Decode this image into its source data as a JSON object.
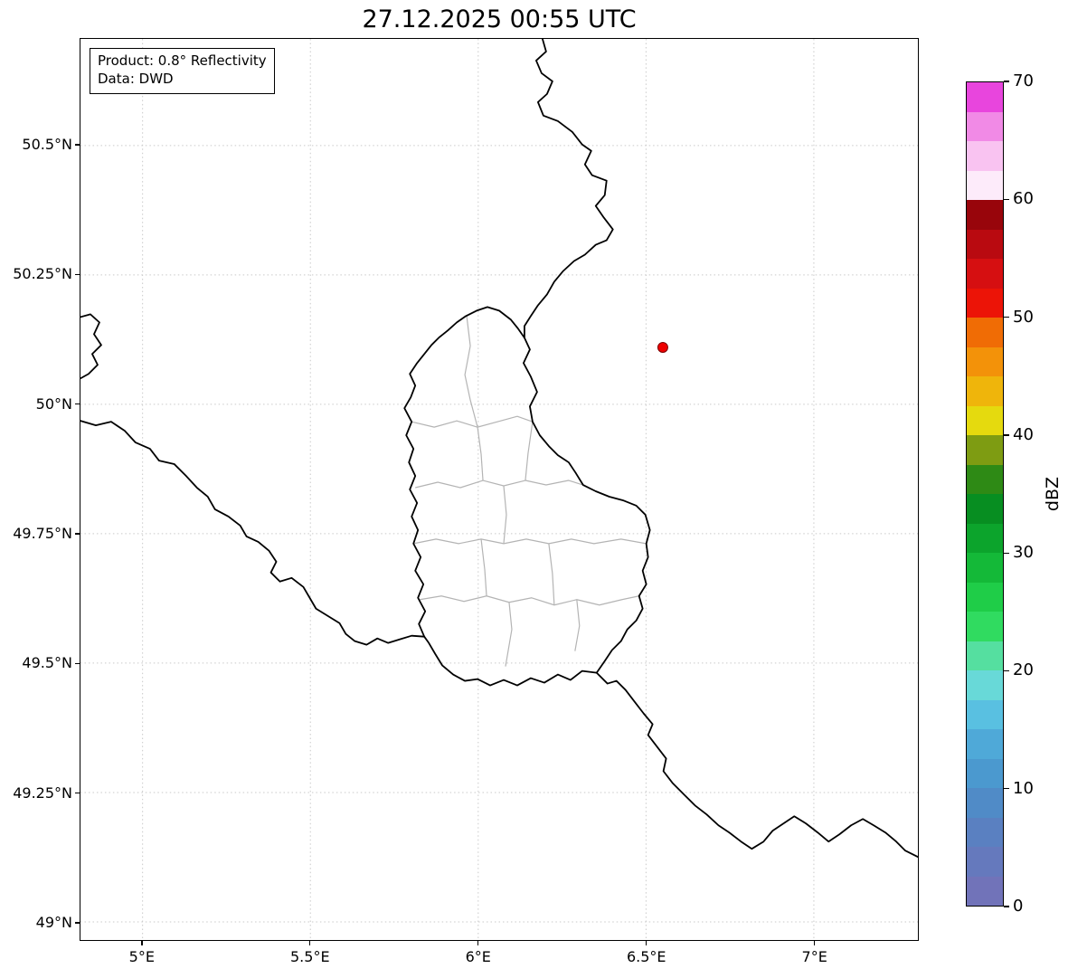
{
  "title": "27.12.2025 00:55 UTC",
  "annotation": {
    "product": "Product: 0.8° Reflectivity",
    "source": "Data: DWD"
  },
  "map": {
    "lon_range": [
      4.815,
      7.31
    ],
    "lat_range": [
      48.965,
      50.706
    ],
    "x_ticks": [
      {
        "value": 5.0,
        "label": "5°E"
      },
      {
        "value": 5.5,
        "label": "5.5°E"
      },
      {
        "value": 6.0,
        "label": "6°E"
      },
      {
        "value": 6.5,
        "label": "6.5°E"
      },
      {
        "value": 7.0,
        "label": "7°E"
      }
    ],
    "y_ticks": [
      {
        "value": 50.5,
        "label": "50.5°N"
      },
      {
        "value": 50.25,
        "label": "50.25°N"
      },
      {
        "value": 50.0,
        "label": "50°N"
      },
      {
        "value": 49.75,
        "label": "49.75°N"
      },
      {
        "value": 49.5,
        "label": "49.5°N"
      },
      {
        "value": 49.25,
        "label": "49.25°N"
      },
      {
        "value": 49.0,
        "label": "49°N"
      }
    ],
    "radar_marker": {
      "lon": 6.55,
      "lat": 50.11,
      "fill": "#ee0000",
      "edge": "#7a0000"
    },
    "border_colors": {
      "national": "#000000",
      "regional": "#b4b4b4"
    },
    "grid_color": "#c9c9c9"
  },
  "colorbar": {
    "label": "dBZ",
    "min": 0,
    "max": 70,
    "tick_values": [
      0,
      10,
      20,
      30,
      40,
      50,
      60,
      70
    ],
    "colors_bottom_to_top": [
      "#7173b9",
      "#6579bd",
      "#5a80c1",
      "#508bc7",
      "#4b99cf",
      "#4fa9d8",
      "#59c0e1",
      "#68d9d8",
      "#55dfa0",
      "#30db60",
      "#1fcd48",
      "#14b938",
      "#0ca42c",
      "#078e21",
      "#2e8a15",
      "#7e9c12",
      "#e5da0e",
      "#efb50b",
      "#f39209",
      "#f06c05",
      "#ec1407",
      "#d60f11",
      "#b90a10",
      "#98050b",
      "#fdebfa",
      "#f9c3f1",
      "#f18ae6",
      "#e845dd"
    ]
  }
}
